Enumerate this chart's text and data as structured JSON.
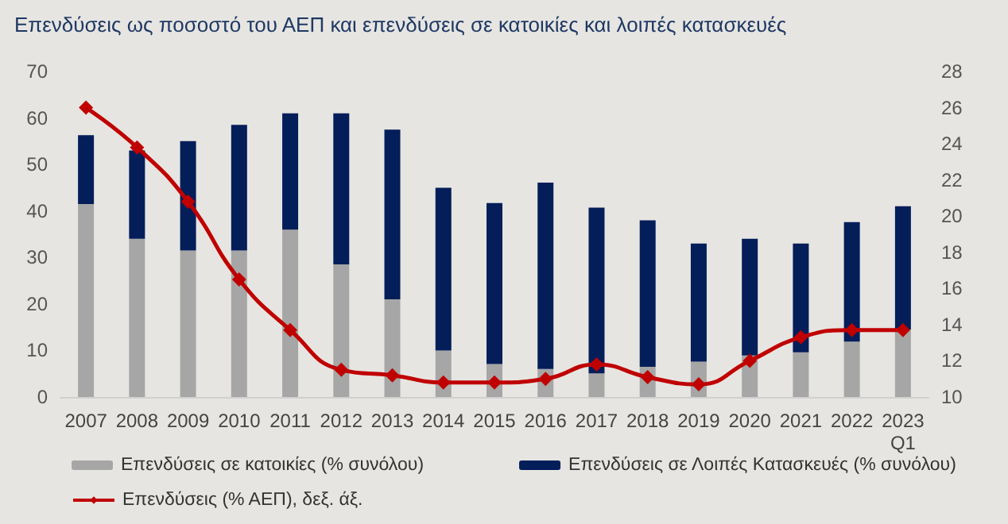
{
  "chart_data": {
    "type": "bar",
    "title": "Επενδύσεις ως ποσοστό του ΑΕΠ και επενδύσεις σε κατοικίες και λοιπές κατασκευές",
    "categories": [
      "2007",
      "2008",
      "2009",
      "2010",
      "2011",
      "2012",
      "2013",
      "2014",
      "2015",
      "2016",
      "2017",
      "2018",
      "2019",
      "2020",
      "2021",
      "2022",
      "2023\nQ1"
    ],
    "stacked": true,
    "ylim": [
      0,
      70
    ],
    "yticks": [
      0,
      10,
      20,
      30,
      40,
      50,
      60,
      70
    ],
    "y2lim": [
      10,
      28
    ],
    "y2ticks": [
      10,
      12,
      14,
      16,
      18,
      20,
      22,
      24,
      26,
      28
    ],
    "grid": false,
    "legend": "bottom",
    "marker": "diamond",
    "series": [
      {
        "name": "Επενδύσεις σε κατοικίες (% συνόλου)",
        "color": "#a6a6a6",
        "values": [
          41.5,
          34,
          31.5,
          31.5,
          36,
          28.5,
          21,
          10,
          7.1,
          6,
          5.1,
          6.5,
          7.6,
          8.9,
          9.6,
          11.9,
          14.5
        ]
      },
      {
        "name": "Επενδύσεις σε Λοιπές Κατασκευές (% συνόλου)",
        "color": "#041e5a",
        "values": [
          14.8,
          19,
          23.5,
          27,
          25,
          32.5,
          36.5,
          35,
          34.6,
          40.1,
          35.6,
          31.5,
          25.4,
          25.1,
          23.4,
          25.7,
          26.5
        ]
      },
      {
        "name": "Επενδύσεις (% ΑΕΠ), δεξ. άξ.",
        "type": "line",
        "axis": "y2",
        "color": "#c00000",
        "values": [
          26.0,
          23.8,
          20.8,
          16.5,
          13.7,
          11.5,
          11.2,
          10.8,
          10.8,
          11.0,
          11.8,
          11.1,
          10.7,
          12.0,
          13.3,
          13.7,
          13.7
        ]
      }
    ]
  }
}
